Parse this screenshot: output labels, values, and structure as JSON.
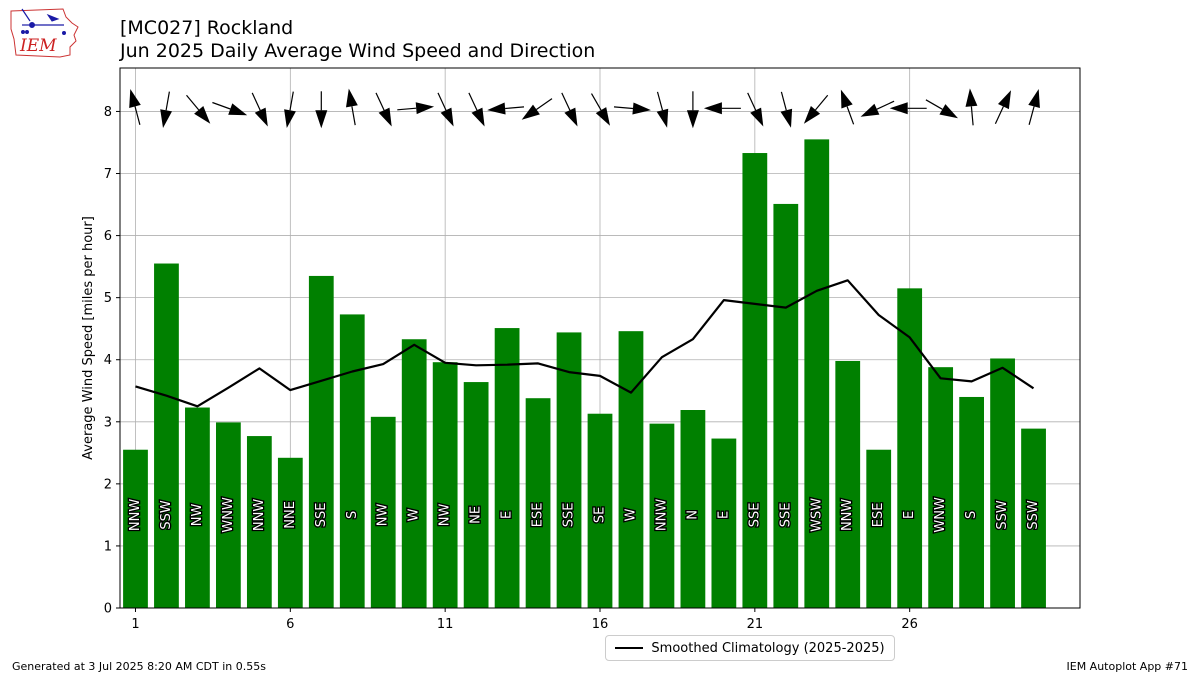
{
  "header": {
    "station_title": "[MC027] Rockland",
    "subtitle": "Jun 2025 Daily Average Wind Speed and Direction"
  },
  "logo": {
    "text": "IEM",
    "icon": "iowa-state-outline-weather-icon"
  },
  "footer": {
    "generated": "Generated at 3 Jul 2025 8:20 AM CDT in 0.55s",
    "app": "IEM Autoplot App #71"
  },
  "legend": {
    "label": "Smoothed Climatology (2025-2025)"
  },
  "colors": {
    "bar": "#008000",
    "climatology": "#000000",
    "grid": "#b0b0b0"
  },
  "chart_data": {
    "type": "bar",
    "title": "[MC027] Rockland",
    "subtitle": "Jun 2025 Daily Average Wind Speed and Direction",
    "xlabel": "",
    "ylabel": "Average Wind Speed [miles per hour]",
    "xlim": [
      0.5,
      31.5
    ],
    "ylim": [
      0,
      8.7
    ],
    "xticks": [
      1,
      6,
      11,
      16,
      21,
      26
    ],
    "yticks": [
      0,
      1,
      2,
      3,
      4,
      5,
      6,
      7,
      8
    ],
    "grid": true,
    "legend_position": "bottom-center",
    "days": [
      1,
      2,
      3,
      4,
      5,
      6,
      7,
      8,
      9,
      10,
      11,
      12,
      13,
      14,
      15,
      16,
      17,
      18,
      19,
      20,
      21,
      22,
      23,
      24,
      25,
      26,
      27,
      28,
      29,
      30
    ],
    "values": [
      2.55,
      5.55,
      3.23,
      2.99,
      2.77,
      2.42,
      5.35,
      4.73,
      3.08,
      4.33,
      3.96,
      3.64,
      4.51,
      3.38,
      4.44,
      3.13,
      4.46,
      2.97,
      3.19,
      2.73,
      7.33,
      6.51,
      7.55,
      3.98,
      2.55,
      5.15,
      3.88,
      3.4,
      4.02,
      2.89
    ],
    "directions": [
      "NNW",
      "SSW",
      "NW",
      "WNW",
      "NNW",
      "NNE",
      "SSE",
      "S",
      "NW",
      "W",
      "NW",
      "NE",
      "E",
      "ESE",
      "SSE",
      "SE",
      "W",
      "NNW",
      "N",
      "E",
      "SSE",
      "SSE",
      "WSW",
      "NNW",
      "ESE",
      "E",
      "WNW",
      "S",
      "SSW",
      "SSW"
    ],
    "series": [
      {
        "name": "Smoothed Climatology (2025-2025)",
        "values": [
          3.57,
          3.42,
          3.25,
          3.55,
          3.86,
          3.51,
          3.66,
          3.81,
          3.93,
          4.24,
          3.95,
          3.91,
          3.92,
          3.94,
          3.8,
          3.74,
          3.47,
          4.04,
          4.33,
          4.96,
          4.9,
          4.84,
          5.11,
          5.28,
          4.72,
          4.36,
          3.7,
          3.65,
          3.87,
          3.54
        ]
      }
    ],
    "wind_arrow_angles_deg": [
      -15,
      190,
      140,
      110,
      155,
      190,
      180,
      -10,
      155,
      85,
      155,
      155,
      265,
      235,
      155,
      150,
      95,
      165,
      180,
      270,
      155,
      165,
      220,
      -20,
      245,
      270,
      120,
      -5,
      25,
      15
    ]
  }
}
